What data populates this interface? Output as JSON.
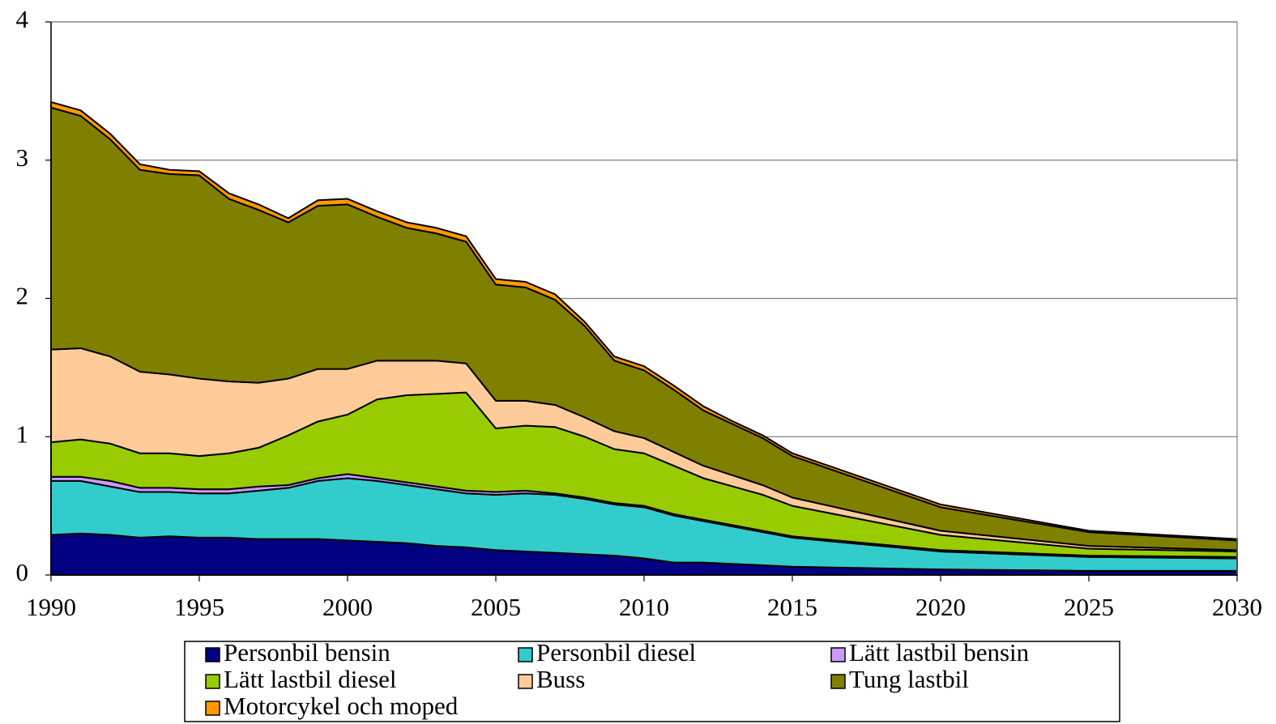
{
  "chart_data": {
    "type": "stacked_area",
    "x": [
      1990,
      1991,
      1992,
      1993,
      1994,
      1995,
      1996,
      1997,
      1998,
      1999,
      2000,
      2001,
      2002,
      2003,
      2004,
      2005,
      2006,
      2007,
      2008,
      2009,
      2010,
      2011,
      2012,
      2013,
      2014,
      2015,
      2020,
      2025,
      2030
    ],
    "series": [
      {
        "name": "Personbil bensin",
        "color": "#000080",
        "values": [
          0.29,
          0.3,
          0.29,
          0.27,
          0.28,
          0.27,
          0.27,
          0.26,
          0.26,
          0.26,
          0.25,
          0.24,
          0.23,
          0.21,
          0.2,
          0.18,
          0.17,
          0.16,
          0.15,
          0.14,
          0.12,
          0.09,
          0.09,
          0.08,
          0.07,
          0.06,
          0.04,
          0.03,
          0.03
        ]
      },
      {
        "name": "Personbil diesel",
        "color": "#33cccc",
        "values": [
          0.39,
          0.38,
          0.35,
          0.33,
          0.32,
          0.32,
          0.32,
          0.35,
          0.37,
          0.42,
          0.45,
          0.44,
          0.42,
          0.41,
          0.39,
          0.4,
          0.42,
          0.42,
          0.4,
          0.37,
          0.37,
          0.34,
          0.3,
          0.27,
          0.24,
          0.21,
          0.13,
          0.1,
          0.09
        ]
      },
      {
        "name": "Lätt lastbil bensin",
        "color": "#cc99ff",
        "values": [
          0.03,
          0.03,
          0.04,
          0.03,
          0.03,
          0.03,
          0.03,
          0.03,
          0.02,
          0.02,
          0.03,
          0.02,
          0.02,
          0.02,
          0.02,
          0.02,
          0.02,
          0.01,
          0.01,
          0.01,
          0.01,
          0.01,
          0.01,
          0.01,
          0.01,
          0.01,
          0.01,
          0.01,
          0.01
        ]
      },
      {
        "name": "Lätt lastbil diesel",
        "color": "#99cc00",
        "values": [
          0.25,
          0.27,
          0.27,
          0.25,
          0.25,
          0.24,
          0.26,
          0.28,
          0.36,
          0.41,
          0.43,
          0.57,
          0.63,
          0.67,
          0.71,
          0.46,
          0.47,
          0.48,
          0.44,
          0.39,
          0.38,
          0.35,
          0.3,
          0.28,
          0.26,
          0.22,
          0.11,
          0.05,
          0.04
        ]
      },
      {
        "name": "Buss",
        "color": "#ffcc99",
        "values": [
          0.67,
          0.66,
          0.63,
          0.59,
          0.57,
          0.56,
          0.52,
          0.47,
          0.41,
          0.38,
          0.33,
          0.28,
          0.25,
          0.24,
          0.21,
          0.2,
          0.18,
          0.16,
          0.14,
          0.13,
          0.11,
          0.1,
          0.09,
          0.08,
          0.07,
          0.06,
          0.03,
          0.02,
          0.01
        ]
      },
      {
        "name": "Tung lastbil",
        "color": "#808000",
        "values": [
          1.75,
          1.68,
          1.57,
          1.46,
          1.45,
          1.47,
          1.32,
          1.25,
          1.13,
          1.18,
          1.19,
          1.04,
          0.96,
          0.92,
          0.88,
          0.84,
          0.82,
          0.76,
          0.66,
          0.51,
          0.49,
          0.45,
          0.4,
          0.37,
          0.34,
          0.3,
          0.17,
          0.1,
          0.07
        ]
      },
      {
        "name": "Motorcykel och moped",
        "color": "#ff9900",
        "values": [
          0.04,
          0.04,
          0.04,
          0.04,
          0.03,
          0.03,
          0.04,
          0.04,
          0.03,
          0.04,
          0.04,
          0.04,
          0.04,
          0.04,
          0.04,
          0.04,
          0.04,
          0.04,
          0.03,
          0.03,
          0.03,
          0.03,
          0.03,
          0.02,
          0.02,
          0.02,
          0.02,
          0.01,
          0.01
        ]
      }
    ],
    "xlim": [
      1990,
      2030
    ],
    "xticks": [
      1990,
      1995,
      2000,
      2005,
      2010,
      2015,
      2020,
      2025,
      2030
    ],
    "ylim": [
      0,
      4
    ],
    "yticks": [
      0,
      1,
      2,
      3,
      4
    ],
    "grid": true
  }
}
